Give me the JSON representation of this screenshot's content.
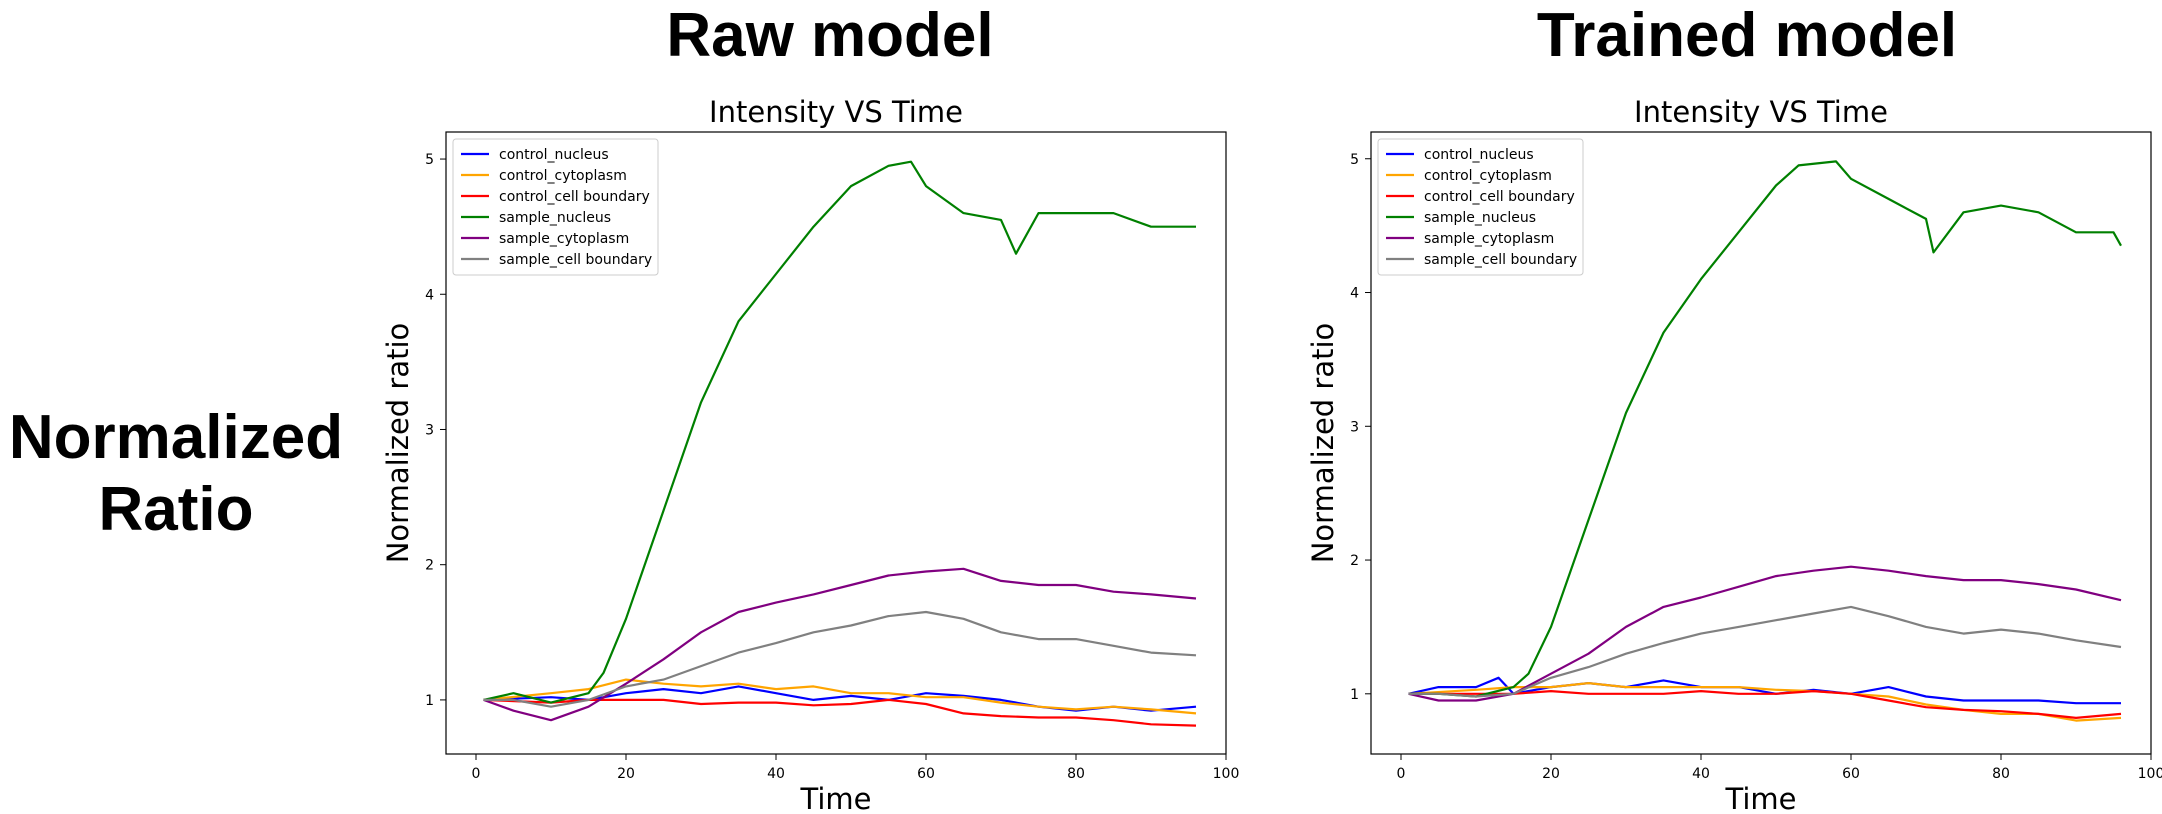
{
  "header": {
    "left_title": "Raw model",
    "right_title": "Trained model",
    "row_label_line1": "Normalized",
    "row_label_line2": "Ratio"
  },
  "chart_data": [
    {
      "type": "line",
      "title": "Intensity VS Time",
      "xlabel": "Time",
      "ylabel": "Normalized ratio",
      "xlim": [
        -4,
        100
      ],
      "ylim": [
        0.6,
        5.2
      ],
      "xticks": [
        0,
        20,
        40,
        60,
        80,
        100
      ],
      "yticks": [
        1,
        2,
        3,
        4,
        5
      ],
      "legend": "top-left",
      "grid": false,
      "series": [
        {
          "name": "control_nucleus",
          "color": "#0000ff",
          "x": [
            1,
            10,
            15,
            20,
            25,
            30,
            35,
            40,
            45,
            50,
            55,
            60,
            65,
            70,
            75,
            80,
            85,
            90,
            96
          ],
          "y": [
            1.0,
            1.02,
            1.0,
            1.05,
            1.08,
            1.05,
            1.1,
            1.05,
            1.0,
            1.03,
            1.0,
            1.05,
            1.03,
            1.0,
            0.95,
            0.92,
            0.95,
            0.92,
            0.95
          ]
        },
        {
          "name": "control_cytoplasm",
          "color": "#ffa500",
          "x": [
            1,
            10,
            15,
            20,
            25,
            30,
            35,
            40,
            45,
            50,
            55,
            60,
            65,
            70,
            75,
            80,
            85,
            90,
            96
          ],
          "y": [
            1.0,
            1.05,
            1.08,
            1.15,
            1.12,
            1.1,
            1.12,
            1.08,
            1.1,
            1.05,
            1.05,
            1.02,
            1.02,
            0.98,
            0.95,
            0.93,
            0.95,
            0.93,
            0.9
          ]
        },
        {
          "name": "control_cell boundary",
          "color": "#ff0000",
          "x": [
            1,
            10,
            15,
            20,
            25,
            30,
            35,
            40,
            45,
            50,
            55,
            60,
            65,
            70,
            75,
            80,
            85,
            90,
            96
          ],
          "y": [
            1.0,
            0.98,
            1.0,
            1.0,
            1.0,
            0.97,
            0.98,
            0.98,
            0.96,
            0.97,
            1.0,
            0.97,
            0.9,
            0.88,
            0.87,
            0.87,
            0.85,
            0.82,
            0.81
          ]
        },
        {
          "name": "sample_nucleus",
          "color": "#008000",
          "x": [
            1,
            5,
            10,
            15,
            17,
            20,
            25,
            30,
            35,
            40,
            45,
            50,
            55,
            58,
            60,
            65,
            70,
            72,
            75,
            80,
            85,
            90,
            96
          ],
          "y": [
            1.0,
            1.05,
            0.98,
            1.05,
            1.2,
            1.6,
            2.4,
            3.2,
            3.8,
            4.15,
            4.5,
            4.8,
            4.95,
            4.98,
            4.8,
            4.6,
            4.55,
            4.3,
            4.6,
            4.6,
            4.6,
            4.5,
            4.5
          ]
        },
        {
          "name": "sample_cytoplasm",
          "color": "#800080",
          "x": [
            1,
            5,
            10,
            15,
            20,
            25,
            30,
            35,
            40,
            45,
            50,
            55,
            60,
            65,
            70,
            75,
            80,
            85,
            90,
            96
          ],
          "y": [
            1.0,
            0.92,
            0.85,
            0.95,
            1.12,
            1.3,
            1.5,
            1.65,
            1.72,
            1.78,
            1.85,
            1.92,
            1.95,
            1.97,
            1.88,
            1.85,
            1.85,
            1.8,
            1.78,
            1.75
          ]
        },
        {
          "name": "sample_cell boundary",
          "color": "#808080",
          "x": [
            1,
            5,
            10,
            15,
            20,
            25,
            30,
            35,
            40,
            45,
            50,
            55,
            60,
            65,
            70,
            75,
            80,
            85,
            90,
            96
          ],
          "y": [
            1.0,
            1.0,
            0.95,
            1.0,
            1.1,
            1.15,
            1.25,
            1.35,
            1.42,
            1.5,
            1.55,
            1.62,
            1.65,
            1.6,
            1.5,
            1.45,
            1.45,
            1.4,
            1.35,
            1.33
          ]
        }
      ]
    },
    {
      "type": "line",
      "title": "Intensity VS Time",
      "xlabel": "Time",
      "ylabel": "Normalized ratio",
      "xlim": [
        -4,
        100
      ],
      "ylim": [
        0.55,
        5.2
      ],
      "xticks": [
        0,
        20,
        40,
        60,
        80,
        100
      ],
      "yticks": [
        1,
        2,
        3,
        4,
        5
      ],
      "legend": "top-left",
      "grid": false,
      "series": [
        {
          "name": "control_nucleus",
          "color": "#0000ff",
          "x": [
            1,
            5,
            10,
            13,
            15,
            20,
            25,
            30,
            35,
            40,
            45,
            50,
            55,
            60,
            65,
            70,
            75,
            80,
            85,
            90,
            96
          ],
          "y": [
            1.0,
            1.05,
            1.05,
            1.12,
            1.0,
            1.05,
            1.08,
            1.05,
            1.1,
            1.05,
            1.05,
            1.0,
            1.03,
            1.0,
            1.05,
            0.98,
            0.95,
            0.95,
            0.95,
            0.93,
            0.93
          ]
        },
        {
          "name": "control_cytoplasm",
          "color": "#ffa500",
          "x": [
            1,
            10,
            15,
            20,
            25,
            30,
            35,
            40,
            45,
            50,
            55,
            60,
            65,
            70,
            75,
            80,
            85,
            90,
            96
          ],
          "y": [
            1.0,
            1.03,
            1.05,
            1.05,
            1.08,
            1.05,
            1.05,
            1.05,
            1.05,
            1.03,
            1.02,
            1.0,
            0.98,
            0.92,
            0.88,
            0.85,
            0.85,
            0.8,
            0.82
          ]
        },
        {
          "name": "control_cell boundary",
          "color": "#ff0000",
          "x": [
            1,
            10,
            15,
            20,
            25,
            30,
            35,
            40,
            45,
            50,
            55,
            60,
            65,
            70,
            75,
            80,
            85,
            90,
            96
          ],
          "y": [
            1.0,
            1.0,
            1.0,
            1.02,
            1.0,
            1.0,
            1.0,
            1.02,
            1.0,
            1.0,
            1.02,
            1.0,
            0.95,
            0.9,
            0.88,
            0.87,
            0.85,
            0.82,
            0.85
          ]
        },
        {
          "name": "sample_nucleus",
          "color": "#008000",
          "x": [
            1,
            5,
            10,
            15,
            17,
            20,
            25,
            30,
            35,
            40,
            45,
            50,
            53,
            58,
            60,
            65,
            70,
            71,
            75,
            80,
            85,
            90,
            95,
            96
          ],
          "y": [
            1.0,
            1.0,
            0.98,
            1.05,
            1.15,
            1.5,
            2.3,
            3.1,
            3.7,
            4.1,
            4.45,
            4.8,
            4.95,
            4.98,
            4.85,
            4.7,
            4.55,
            4.3,
            4.6,
            4.65,
            4.6,
            4.45,
            4.45,
            4.35
          ]
        },
        {
          "name": "sample_cytoplasm",
          "color": "#800080",
          "x": [
            1,
            5,
            10,
            15,
            20,
            25,
            30,
            35,
            40,
            45,
            50,
            55,
            60,
            65,
            70,
            75,
            80,
            85,
            90,
            96
          ],
          "y": [
            1.0,
            0.95,
            0.95,
            1.0,
            1.15,
            1.3,
            1.5,
            1.65,
            1.72,
            1.8,
            1.88,
            1.92,
            1.95,
            1.92,
            1.88,
            1.85,
            1.85,
            1.82,
            1.78,
            1.7
          ]
        },
        {
          "name": "sample_cell boundary",
          "color": "#808080",
          "x": [
            1,
            5,
            10,
            15,
            20,
            25,
            30,
            35,
            40,
            45,
            50,
            55,
            60,
            65,
            70,
            75,
            80,
            85,
            90,
            96
          ],
          "y": [
            1.0,
            1.0,
            0.98,
            1.0,
            1.12,
            1.2,
            1.3,
            1.38,
            1.45,
            1.5,
            1.55,
            1.6,
            1.65,
            1.58,
            1.5,
            1.45,
            1.48,
            1.45,
            1.4,
            1.35
          ]
        }
      ]
    }
  ]
}
